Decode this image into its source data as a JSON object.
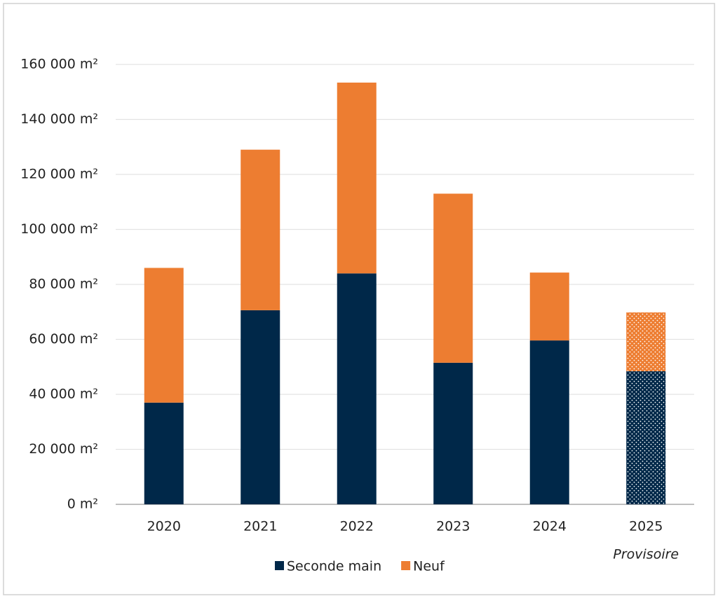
{
  "chart_data": {
    "type": "stacked_bar",
    "categories": [
      "2020",
      "2021",
      "2022",
      "2023",
      "2024",
      "2025"
    ],
    "annotation": "Provisoire",
    "dotted": [
      false,
      false,
      false,
      false,
      false,
      true
    ],
    "series": [
      {
        "name": "Seconde main",
        "color": "#002849",
        "values": [
          37000,
          70600,
          84000,
          51500,
          59600,
          48400
        ]
      },
      {
        "name": "Neuf",
        "color": "#ed7d31",
        "values": [
          49000,
          58400,
          69400,
          61500,
          24700,
          21400
        ]
      }
    ],
    "ylim": [
      0,
      160000
    ],
    "yticks": [
      {
        "value": 0,
        "label": "0 m²"
      },
      {
        "value": 20000,
        "label": "20 000 m²"
      },
      {
        "value": 40000,
        "label": "40 000 m²"
      },
      {
        "value": 60000,
        "label": "60 000 m²"
      },
      {
        "value": 80000,
        "label": "80 000 m²"
      },
      {
        "value": 100000,
        "label": "100 000 m²"
      },
      {
        "value": 120000,
        "label": "120 000 m²"
      },
      {
        "value": 140000,
        "label": "140 000 m²"
      },
      {
        "value": 160000,
        "label": "160 000 m²"
      }
    ],
    "grid": true,
    "legend": "bottom"
  }
}
